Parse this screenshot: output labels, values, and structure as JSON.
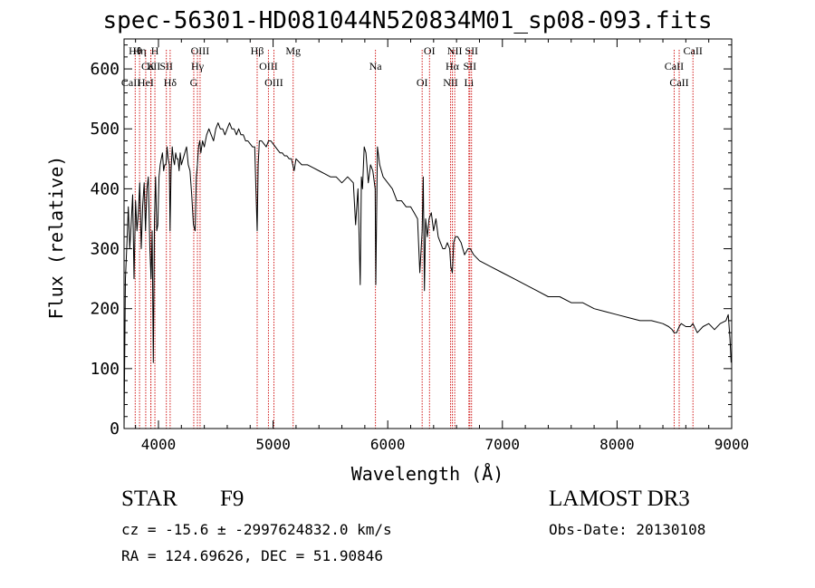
{
  "chart_data": {
    "type": "line",
    "title": "spec-56301-HD081044N520834M01_sp08-093.fits",
    "xlabel": "Wavelength (Å)",
    "ylabel": "Flux (relative)",
    "xlim": [
      3700,
      9000
    ],
    "ylim": [
      0,
      650
    ],
    "x_ticks": [
      4000,
      5000,
      6000,
      7000,
      8000,
      9000
    ],
    "y_ticks": [
      0,
      100,
      200,
      300,
      400,
      500,
      600
    ],
    "series": [
      {
        "name": "flux",
        "color": "#000000",
        "x": [
          3700,
          3712,
          3725,
          3737,
          3750,
          3762,
          3775,
          3787,
          3800,
          3812,
          3825,
          3837,
          3850,
          3862,
          3875,
          3887,
          3900,
          3912,
          3925,
          3935,
          3945,
          3955,
          3965,
          3975,
          3985,
          3995,
          4005,
          4015,
          4025,
          4035,
          4045,
          4055,
          4065,
          4075,
          4085,
          4095,
          4101,
          4110,
          4120,
          4130,
          4140,
          4150,
          4160,
          4170,
          4180,
          4190,
          4200,
          4215,
          4230,
          4245,
          4260,
          4275,
          4290,
          4305,
          4320,
          4330,
          4340,
          4350,
          4360,
          4370,
          4385,
          4400,
          4420,
          4440,
          4460,
          4480,
          4500,
          4520,
          4540,
          4560,
          4580,
          4600,
          4620,
          4640,
          4660,
          4680,
          4700,
          4720,
          4740,
          4760,
          4780,
          4800,
          4820,
          4840,
          4850,
          4861,
          4870,
          4880,
          4900,
          4920,
          4940,
          4960,
          4980,
          5000,
          5020,
          5040,
          5060,
          5080,
          5100,
          5120,
          5140,
          5160,
          5183,
          5200,
          5250,
          5300,
          5350,
          5400,
          5450,
          5500,
          5550,
          5600,
          5650,
          5700,
          5720,
          5740,
          5760,
          5770,
          5780,
          5795,
          5810,
          5830,
          5850,
          5870,
          5890,
          5896,
          5910,
          5930,
          5960,
          6000,
          6040,
          6080,
          6120,
          6160,
          6200,
          6230,
          6260,
          6280,
          6300,
          6310,
          6320,
          6330,
          6345,
          6360,
          6380,
          6400,
          6420,
          6440,
          6460,
          6480,
          6500,
          6520,
          6540,
          6550,
          6563,
          6575,
          6590,
          6610,
          6640,
          6670,
          6700,
          6720,
          6750,
          6800,
          6900,
          7000,
          7100,
          7200,
          7300,
          7400,
          7500,
          7600,
          7700,
          7800,
          7900,
          8000,
          8100,
          8200,
          8300,
          8400,
          8450,
          8480,
          8498,
          8520,
          8542,
          8560,
          8600,
          8640,
          8662,
          8700,
          8750,
          8800,
          8850,
          8900,
          8950,
          8970,
          8985,
          8995
        ],
        "y": [
          0,
          250,
          310,
          370,
          300,
          340,
          390,
          250,
          380,
          330,
          360,
          410,
          300,
          370,
          410,
          330,
          400,
          420,
          300,
          250,
          330,
          110,
          350,
          420,
          330,
          340,
          420,
          440,
          450,
          460,
          430,
          440,
          440,
          470,
          450,
          440,
          330,
          430,
          470,
          450,
          440,
          460,
          450,
          450,
          430,
          460,
          440,
          450,
          460,
          470,
          440,
          430,
          390,
          340,
          330,
          420,
          440,
          470,
          480,
          460,
          480,
          470,
          490,
          500,
          490,
          480,
          500,
          510,
          500,
          500,
          490,
          500,
          510,
          500,
          500,
          490,
          500,
          490,
          490,
          480,
          480,
          475,
          470,
          470,
          400,
          330,
          440,
          480,
          480,
          475,
          470,
          480,
          480,
          475,
          470,
          465,
          460,
          460,
          455,
          455,
          450,
          450,
          430,
          450,
          440,
          440,
          435,
          430,
          425,
          420,
          420,
          410,
          420,
          410,
          340,
          400,
          240,
          420,
          400,
          470,
          460,
          410,
          440,
          430,
          400,
          240,
          470,
          440,
          420,
          410,
          400,
          380,
          380,
          370,
          370,
          360,
          350,
          260,
          330,
          420,
          230,
          350,
          320,
          350,
          360,
          330,
          350,
          320,
          310,
          300,
          300,
          310,
          300,
          270,
          260,
          310,
          320,
          320,
          310,
          290,
          300,
          300,
          290,
          280,
          270,
          260,
          250,
          240,
          230,
          220,
          220,
          210,
          210,
          200,
          195,
          190,
          185,
          180,
          180,
          175,
          170,
          165,
          160,
          160,
          170,
          175,
          170,
          170,
          175,
          160,
          170,
          175,
          165,
          175,
          180,
          190,
          150,
          110
        ]
      }
    ],
    "line_markers": [
      {
        "label": "Hθ",
        "x": 3797
      },
      {
        "label": "CaII",
        "x": 3934
      },
      {
        "label": "Hη",
        "x": 3835
      },
      {
        "label": "K",
        "x": 3934
      },
      {
        "label": "HeI",
        "x": 3889
      },
      {
        "label": "H",
        "x": 3969
      },
      {
        "label": "SII",
        "x": 4069
      },
      {
        "label": "Hδ",
        "x": 4102
      },
      {
        "label": "OIII",
        "x": 4363
      },
      {
        "label": "Hγ",
        "x": 4340
      },
      {
        "label": "G",
        "x": 4308
      },
      {
        "label": "Hβ",
        "x": 4861
      },
      {
        "label": "OIII",
        "x": 4959
      },
      {
        "label": "OIII",
        "x": 5007
      },
      {
        "label": "Mg",
        "x": 5175
      },
      {
        "label": "Na",
        "x": 5893
      },
      {
        "label": "OI",
        "x": 6300
      },
      {
        "label": "OI",
        "x": 6364
      },
      {
        "label": "Hα",
        "x": 6563
      },
      {
        "label": "NII",
        "x": 6548
      },
      {
        "label": "NII",
        "x": 6584
      },
      {
        "label": "SII",
        "x": 6716
      },
      {
        "label": "Li",
        "x": 6708
      },
      {
        "label": "SII",
        "x": 6731
      },
      {
        "label": "CaII",
        "x": 8498
      },
      {
        "label": "CaII",
        "x": 8542
      },
      {
        "label": "CaII",
        "x": 8662
      }
    ],
    "marker_labels": [
      {
        "text": "Hθ",
        "x": 3797
      },
      {
        "text": "CaII",
        "x": 3934
      },
      {
        "text": "CaII",
        "x": 3760
      },
      {
        "text": "Hη",
        "x": 3835
      },
      {
        "text": "K",
        "x": 3934
      },
      {
        "text": "HeI",
        "x": 3889
      },
      {
        "text": "H",
        "x": 3969
      },
      {
        "text": "SII",
        "x": 4069
      },
      {
        "text": "Hδ",
        "x": 4102
      },
      {
        "text": "OIII",
        "x": 4363
      },
      {
        "text": "Hγ",
        "x": 4340
      },
      {
        "text": "G",
        "x": 4308
      },
      {
        "text": "Hβ",
        "x": 4861
      },
      {
        "text": "OIII",
        "x": 4959
      },
      {
        "text": "OIII",
        "x": 5007
      },
      {
        "text": "Mg",
        "x": 5175
      },
      {
        "text": "Na",
        "x": 5893
      },
      {
        "text": "OI",
        "x": 6300
      },
      {
        "text": "OI",
        "x": 6364
      },
      {
        "text": "Hα",
        "x": 6563
      },
      {
        "text": "NII",
        "x": 6548
      },
      {
        "text": "NII",
        "x": 6584
      },
      {
        "text": "SII",
        "x": 6716
      },
      {
        "text": "Li",
        "x": 6708
      },
      {
        "text": "SII",
        "x": 6731
      },
      {
        "text": "CaII",
        "x": 8498
      },
      {
        "text": "CaII",
        "x": 8542
      },
      {
        "text": "CaII",
        "x": 8662
      }
    ]
  },
  "info": {
    "object_class": "STAR",
    "subclass": "F9",
    "survey": "LAMOST DR3",
    "redshift_line": "cz = -15.6 ± -2997624832.0 km/s",
    "obs_date_line": "Obs-Date: 20130108",
    "coords_line": "RA = 124.69626, DEC =  51.90846"
  },
  "colors": {
    "axis": "#000000",
    "spectrum": "#000000",
    "marker": "#cc0000"
  }
}
